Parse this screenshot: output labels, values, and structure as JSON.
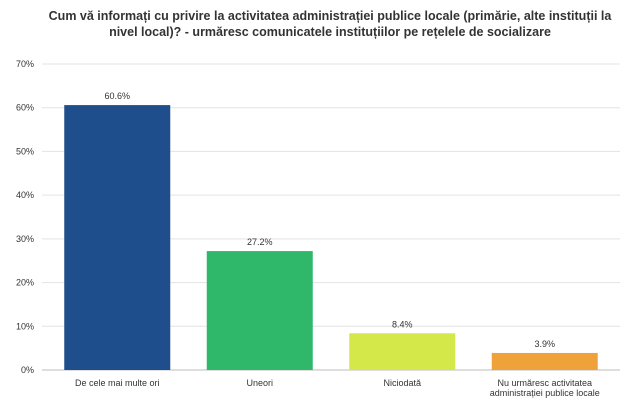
{
  "chart_data": {
    "type": "bar",
    "title": [
      "Cum vă informați cu privire la activitatea administrației publice locale (primărie, alte instituții la",
      "nivel local)? - urmăresc comunicatele instituțiilor pe rețelele de socializare"
    ],
    "categories": [
      [
        "De cele mai multe ori"
      ],
      [
        "Uneori"
      ],
      [
        "Niciodată"
      ],
      [
        "Nu urmăresc activitatea",
        "administrației publice locale"
      ]
    ],
    "values": [
      60.6,
      27.2,
      8.4,
      3.9
    ],
    "data_labels": [
      "60.6%",
      "27.2%",
      "8.4%",
      "3.9%"
    ],
    "colors": [
      "#1f4e8c",
      "#2fb86a",
      "#d4e84a",
      "#f0a23a"
    ],
    "ylim": [
      0,
      70
    ],
    "yticks": [
      0,
      10,
      20,
      30,
      40,
      50,
      60,
      70
    ],
    "ytick_labels": [
      "0%",
      "10%",
      "20%",
      "30%",
      "40%",
      "50%",
      "60%",
      "70%"
    ],
    "grid": true,
    "xlabel": "",
    "ylabel": ""
  }
}
